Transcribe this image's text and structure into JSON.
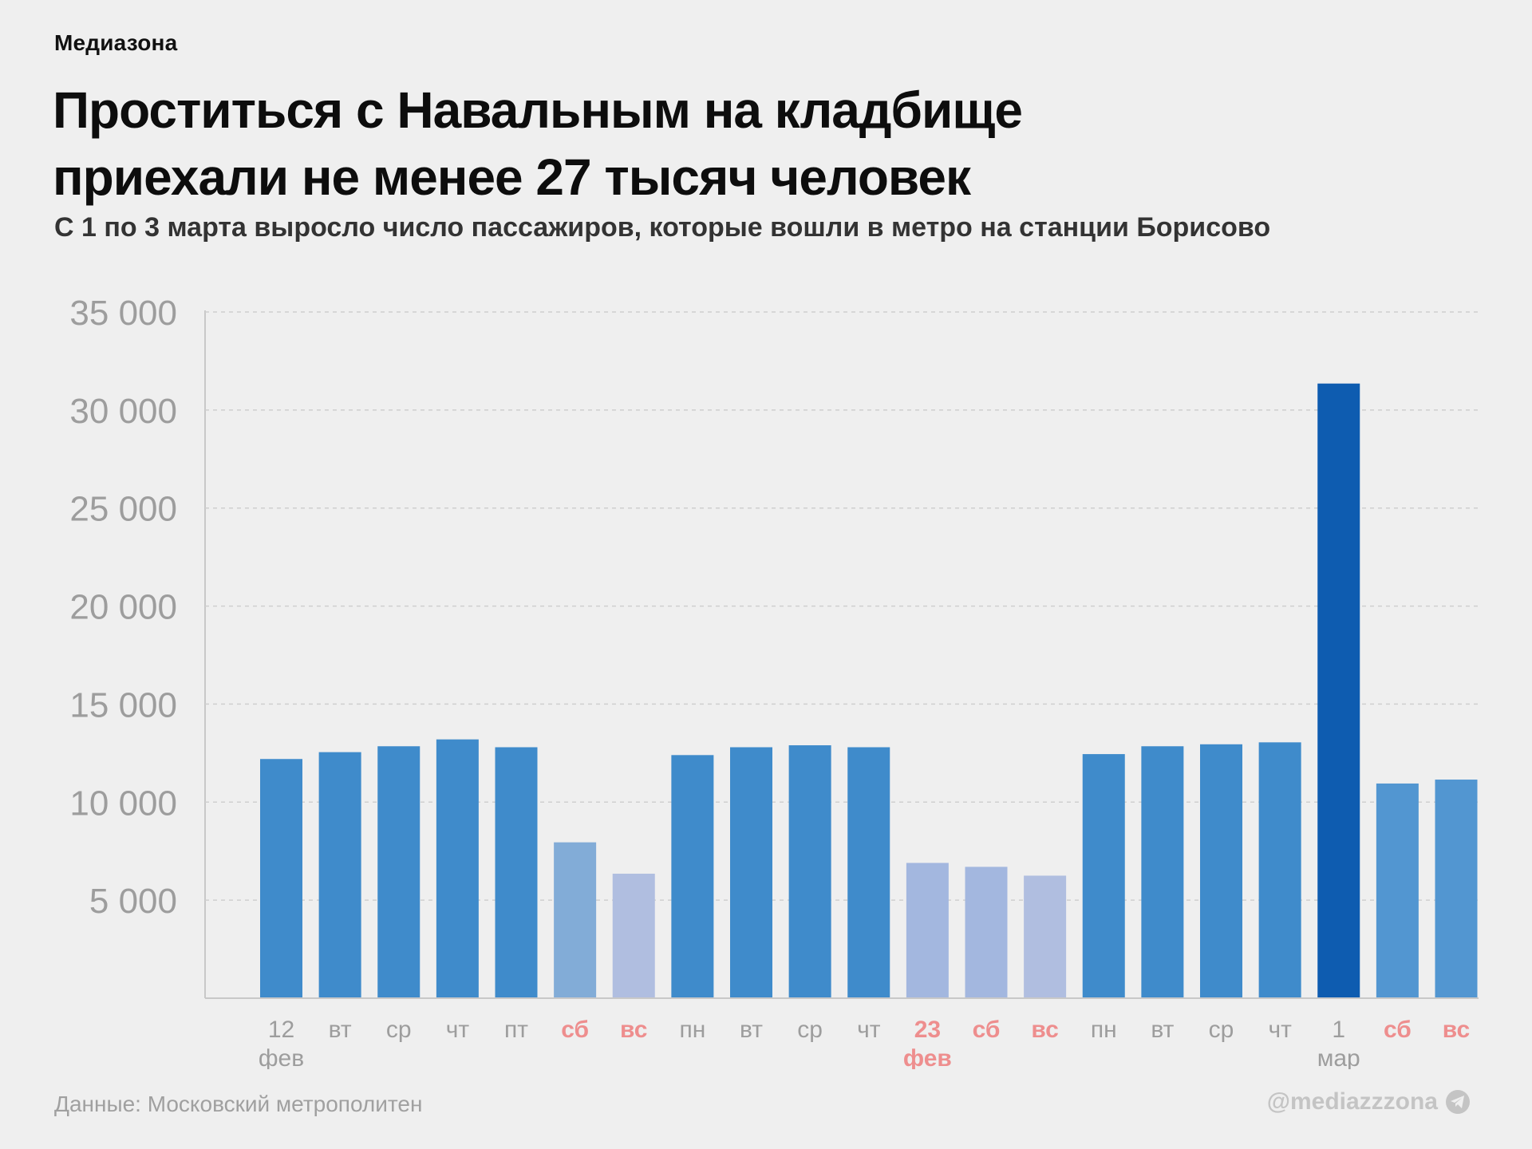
{
  "brand": "Медиазона",
  "title": "Проститься с Навальным на кладбище приехали не менее 27 тысяч человек",
  "subtitle": "С 1 по 3 марта выросло число пассажиров, которые вошли в метро на станции Борисово",
  "footer": {
    "source": "Данные: Московский метрополитен",
    "handle": "@mediazzzona",
    "handle_icon": "telegram-icon"
  },
  "colors": {
    "weekday": "#3f8bcb",
    "saturday": "#82acd7",
    "sunday": "#b0bee0",
    "holiday": "#a3b7df",
    "march_weekend": "#5296d1",
    "highlight": "#0e5cb0",
    "red_label": "#ee8e8e",
    "gray_label": "#9d9d9d",
    "grid": "#cfcfcf",
    "axis": "#c8c8c8"
  },
  "chart_data": {
    "type": "bar",
    "title": "Проститься с Навальным на кладбище приехали не менее 27 тысяч человек",
    "ylim": [
      0,
      35000
    ],
    "yticks": [
      {
        "value": 5000,
        "label": "5 000"
      },
      {
        "value": 10000,
        "label": "10 000"
      },
      {
        "value": 15000,
        "label": "15 000"
      },
      {
        "value": 20000,
        "label": "20 000"
      },
      {
        "value": 25000,
        "label": "25 000"
      },
      {
        "value": 30000,
        "label": "30 000"
      },
      {
        "value": 35000,
        "label": "35 000"
      }
    ],
    "grid": true,
    "bars": [
      {
        "label": "12",
        "sub": "фев",
        "value": 12200,
        "kind": "weekday",
        "red": false
      },
      {
        "label": "вт",
        "sub": "",
        "value": 12550,
        "kind": "weekday",
        "red": false
      },
      {
        "label": "ср",
        "sub": "",
        "value": 12850,
        "kind": "weekday",
        "red": false
      },
      {
        "label": "чт",
        "sub": "",
        "value": 13200,
        "kind": "weekday",
        "red": false
      },
      {
        "label": "пт",
        "sub": "",
        "value": 12800,
        "kind": "weekday",
        "red": false
      },
      {
        "label": "сб",
        "sub": "",
        "value": 7950,
        "kind": "saturday",
        "red": true
      },
      {
        "label": "вс",
        "sub": "",
        "value": 6350,
        "kind": "sunday",
        "red": true
      },
      {
        "label": "пн",
        "sub": "",
        "value": 12400,
        "kind": "weekday",
        "red": false
      },
      {
        "label": "вт",
        "sub": "",
        "value": 12800,
        "kind": "weekday",
        "red": false
      },
      {
        "label": "ср",
        "sub": "",
        "value": 12900,
        "kind": "weekday",
        "red": false
      },
      {
        "label": "чт",
        "sub": "",
        "value": 12800,
        "kind": "weekday",
        "red": false
      },
      {
        "label": "23",
        "sub": "фев",
        "value": 6900,
        "kind": "holiday",
        "red": true
      },
      {
        "label": "сб",
        "sub": "",
        "value": 6700,
        "kind": "holiday",
        "red": true
      },
      {
        "label": "вс",
        "sub": "",
        "value": 6250,
        "kind": "sunday",
        "red": true
      },
      {
        "label": "пн",
        "sub": "",
        "value": 12450,
        "kind": "weekday",
        "red": false
      },
      {
        "label": "вт",
        "sub": "",
        "value": 12850,
        "kind": "weekday",
        "red": false
      },
      {
        "label": "ср",
        "sub": "",
        "value": 12950,
        "kind": "weekday",
        "red": false
      },
      {
        "label": "чт",
        "sub": "",
        "value": 13050,
        "kind": "weekday",
        "red": false
      },
      {
        "label": "1",
        "sub": "мар",
        "value": 31350,
        "kind": "highlight",
        "red": false
      },
      {
        "label": "сб",
        "sub": "",
        "value": 10950,
        "kind": "march_weekend",
        "red": true
      },
      {
        "label": "вс",
        "sub": "",
        "value": 11150,
        "kind": "march_weekend",
        "red": true
      }
    ]
  }
}
